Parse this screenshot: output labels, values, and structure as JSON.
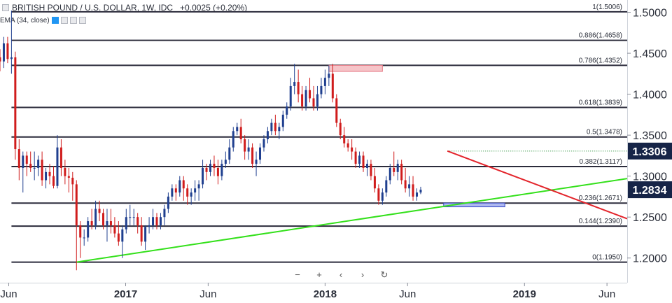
{
  "header": {
    "symbol": "BRITISH POUND / U.S. DOLLAR, 1W, IDC",
    "change": "+0.0025 (+0.20%)",
    "indicator": "EMA (34, close)"
  },
  "colors": {
    "up": "#1f3f8f",
    "down": "#d01c1c",
    "fib_line": "#2b2b3b",
    "green_trend": "#33e01a",
    "red_trend": "#e3242b",
    "support_zone": "#aeb8f0",
    "resistance_zone": "#f6c4c8",
    "price_badge": "#162447",
    "axis_text": "#2a2e39"
  },
  "nav": {
    "zoom_out": "−",
    "zoom_in": "+",
    "scroll_left": "‹",
    "scroll_right": "›",
    "reset": "↻"
  },
  "chart_data": {
    "type": "candlestick",
    "ylim": [
      1.175,
      1.515
    ],
    "xlim": [
      "2016-05-16",
      "2019-07-08"
    ],
    "y_ticks": [
      1.5,
      1.45,
      1.4,
      1.35,
      1.3,
      1.25,
      1.2
    ],
    "y_tick_labels": [
      "1.5000",
      "1.4500",
      "1.4000",
      "1.3500",
      "1.3000",
      "1.2500",
      "1.2000"
    ],
    "x_ticks": [
      {
        "label": "Jun",
        "date": "2016-06-01"
      },
      {
        "label": "2017",
        "date": "2017-01-01"
      },
      {
        "label": "Jun",
        "date": "2017-06-01"
      },
      {
        "label": "2018",
        "date": "2018-01-01"
      },
      {
        "label": "Jun",
        "date": "2018-06-01"
      },
      {
        "label": "2019",
        "date": "2019-01-01"
      },
      {
        "label": "Jun",
        "date": "2019-06-01"
      }
    ],
    "fib_levels": [
      {
        "label": "1(1.5006)",
        "value": 1.5006
      },
      {
        "label": "0.886(1.4658)",
        "value": 1.4658
      },
      {
        "label": "0.786(1.4352)",
        "value": 1.4352
      },
      {
        "label": "0.618(1.3839)",
        "value": 1.3839
      },
      {
        "label": "0.5(1.3478)",
        "value": 1.3478
      },
      {
        "label": "0.382(1.3117)",
        "value": 1.3117
      },
      {
        "label": "0.236(1.2671)",
        "value": 1.2671
      },
      {
        "label": "0.144(1.2390)",
        "value": 1.239
      },
      {
        "label": "0(1.1950)",
        "value": 1.195
      }
    ],
    "price_badges": [
      {
        "label": "1.3306",
        "value": 1.3306
      },
      {
        "label": "1.2834",
        "value": 1.2834
      }
    ],
    "dotted_level": {
      "value": 1.3306,
      "from": "2018-08-13",
      "to": "2019-07-08"
    },
    "trendlines": [
      {
        "name": "support",
        "from": {
          "date": "2016-10-03",
          "value": 1.195
        },
        "to": {
          "date": "2019-07-08",
          "value": 1.297
        }
      },
      {
        "name": "resistance",
        "from": {
          "date": "2018-08-13",
          "value": 1.3306
        },
        "to": {
          "date": "2019-07-08",
          "value": 1.248
        }
      }
    ],
    "zones": [
      {
        "name": "resistance-zone",
        "from": "2018-01-08",
        "to": "2018-04-16",
        "low": 1.4278,
        "high": 1.4352
      },
      {
        "name": "support-zone",
        "from": "2018-08-06",
        "to": "2018-11-26",
        "low": 1.2625,
        "high": 1.2671
      }
    ],
    "candles": {
      "start_date": "2016-05-16",
      "interval_days": 7,
      "ohlc": [
        [
          1.445,
          1.455,
          1.428,
          1.44
        ],
        [
          1.44,
          1.47,
          1.432,
          1.462
        ],
        [
          1.462,
          1.47,
          1.438,
          1.443
        ],
        [
          1.443,
          1.502,
          1.425,
          1.445
        ],
        [
          1.445,
          1.452,
          1.32,
          1.333
        ],
        [
          1.333,
          1.345,
          1.295,
          1.31
        ],
        [
          1.31,
          1.33,
          1.28,
          1.325
        ],
        [
          1.325,
          1.33,
          1.3,
          1.315
        ],
        [
          1.315,
          1.33,
          1.305,
          1.31
        ],
        [
          1.31,
          1.33,
          1.295,
          1.31
        ],
        [
          1.31,
          1.325,
          1.3,
          1.32
        ],
        [
          1.32,
          1.33,
          1.288,
          1.295
        ],
        [
          1.295,
          1.31,
          1.285,
          1.305
        ],
        [
          1.305,
          1.315,
          1.29,
          1.3
        ],
        [
          1.3,
          1.312,
          1.285,
          1.288
        ],
        [
          1.288,
          1.35,
          1.285,
          1.335
        ],
        [
          1.335,
          1.345,
          1.3,
          1.31
        ],
        [
          1.31,
          1.32,
          1.29,
          1.3
        ],
        [
          1.3,
          1.31,
          1.28,
          1.298
        ],
        [
          1.298,
          1.305,
          1.27,
          1.29
        ],
        [
          1.29,
          1.295,
          1.185,
          1.24
        ],
        [
          1.24,
          1.245,
          1.2,
          1.225
        ],
        [
          1.225,
          1.235,
          1.215,
          1.225
        ],
        [
          1.225,
          1.25,
          1.22,
          1.245
        ],
        [
          1.245,
          1.26,
          1.235,
          1.24
        ],
        [
          1.24,
          1.27,
          1.235,
          1.26
        ],
        [
          1.26,
          1.27,
          1.245,
          1.255
        ],
        [
          1.255,
          1.26,
          1.235,
          1.24
        ],
        [
          1.24,
          1.26,
          1.22,
          1.245
        ],
        [
          1.245,
          1.26,
          1.23,
          1.24
        ],
        [
          1.24,
          1.25,
          1.225,
          1.23
        ],
        [
          1.23,
          1.245,
          1.215,
          1.22
        ],
        [
          1.22,
          1.24,
          1.2,
          1.235
        ],
        [
          1.235,
          1.26,
          1.23,
          1.25
        ],
        [
          1.25,
          1.265,
          1.24,
          1.25
        ],
        [
          1.25,
          1.26,
          1.24,
          1.25
        ],
        [
          1.25,
          1.255,
          1.23,
          1.24
        ],
        [
          1.24,
          1.25,
          1.215,
          1.22
        ],
        [
          1.22,
          1.24,
          1.21,
          1.238
        ],
        [
          1.238,
          1.25,
          1.23,
          1.24
        ],
        [
          1.24,
          1.26,
          1.235,
          1.25
        ],
        [
          1.25,
          1.255,
          1.235,
          1.24
        ],
        [
          1.24,
          1.255,
          1.235,
          1.25
        ],
        [
          1.25,
          1.265,
          1.24,
          1.26
        ],
        [
          1.26,
          1.28,
          1.255,
          1.275
        ],
        [
          1.275,
          1.29,
          1.27,
          1.285
        ],
        [
          1.285,
          1.29,
          1.27,
          1.28
        ],
        [
          1.28,
          1.3,
          1.275,
          1.295
        ],
        [
          1.295,
          1.3,
          1.27,
          1.285
        ],
        [
          1.285,
          1.29,
          1.265,
          1.275
        ],
        [
          1.275,
          1.285,
          1.265,
          1.28
        ],
        [
          1.28,
          1.295,
          1.27,
          1.285
        ],
        [
          1.285,
          1.295,
          1.27,
          1.29
        ],
        [
          1.29,
          1.32,
          1.285,
          1.31
        ],
        [
          1.31,
          1.315,
          1.295,
          1.305
        ],
        [
          1.305,
          1.32,
          1.3,
          1.315
        ],
        [
          1.315,
          1.325,
          1.3,
          1.31
        ],
        [
          1.31,
          1.32,
          1.29,
          1.3
        ],
        [
          1.3,
          1.32,
          1.295,
          1.315
        ],
        [
          1.315,
          1.33,
          1.31,
          1.32
        ],
        [
          1.32,
          1.345,
          1.315,
          1.335
        ],
        [
          1.335,
          1.36,
          1.33,
          1.355
        ],
        [
          1.355,
          1.365,
          1.35,
          1.36
        ],
        [
          1.36,
          1.37,
          1.34,
          1.345
        ],
        [
          1.345,
          1.35,
          1.32,
          1.33
        ],
        [
          1.33,
          1.345,
          1.32,
          1.335
        ],
        [
          1.335,
          1.34,
          1.31,
          1.315
        ],
        [
          1.315,
          1.33,
          1.3,
          1.32
        ],
        [
          1.32,
          1.34,
          1.315,
          1.335
        ],
        [
          1.335,
          1.35,
          1.33,
          1.345
        ],
        [
          1.345,
          1.36,
          1.34,
          1.355
        ],
        [
          1.355,
          1.37,
          1.35,
          1.365
        ],
        [
          1.365,
          1.375,
          1.35,
          1.355
        ],
        [
          1.355,
          1.365,
          1.345,
          1.36
        ],
        [
          1.36,
          1.38,
          1.355,
          1.375
        ],
        [
          1.375,
          1.39,
          1.37,
          1.385
        ],
        [
          1.385,
          1.42,
          1.38,
          1.41
        ],
        [
          1.41,
          1.437,
          1.4,
          1.415
        ],
        [
          1.415,
          1.43,
          1.39,
          1.4
        ],
        [
          1.4,
          1.41,
          1.38,
          1.385
        ],
        [
          1.385,
          1.41,
          1.38,
          1.405
        ],
        [
          1.405,
          1.42,
          1.39,
          1.395
        ],
        [
          1.395,
          1.41,
          1.38,
          1.385
        ],
        [
          1.385,
          1.41,
          1.38,
          1.4
        ],
        [
          1.4,
          1.42,
          1.395,
          1.41
        ],
        [
          1.41,
          1.43,
          1.4,
          1.42
        ],
        [
          1.42,
          1.435,
          1.41,
          1.425
        ],
        [
          1.425,
          1.437,
          1.39,
          1.395
        ],
        [
          1.395,
          1.4,
          1.36,
          1.365
        ],
        [
          1.365,
          1.37,
          1.345,
          1.35
        ],
        [
          1.35,
          1.36,
          1.335,
          1.34
        ],
        [
          1.34,
          1.345,
          1.33,
          1.335
        ],
        [
          1.335,
          1.345,
          1.32,
          1.33
        ],
        [
          1.33,
          1.335,
          1.31,
          1.315
        ],
        [
          1.315,
          1.33,
          1.31,
          1.325
        ],
        [
          1.325,
          1.33,
          1.305,
          1.31
        ],
        [
          1.31,
          1.32,
          1.3,
          1.315
        ],
        [
          1.315,
          1.32,
          1.295,
          1.3
        ],
        [
          1.3,
          1.31,
          1.28,
          1.285
        ],
        [
          1.285,
          1.29,
          1.265,
          1.27
        ],
        [
          1.27,
          1.285,
          1.265,
          1.28
        ],
        [
          1.28,
          1.3,
          1.275,
          1.295
        ],
        [
          1.295,
          1.315,
          1.29,
          1.31
        ],
        [
          1.31,
          1.33,
          1.3,
          1.305
        ],
        [
          1.305,
          1.32,
          1.295,
          1.315
        ],
        [
          1.315,
          1.32,
          1.29,
          1.295
        ],
        [
          1.295,
          1.31,
          1.28,
          1.285
        ],
        [
          1.285,
          1.3,
          1.275,
          1.29
        ],
        [
          1.29,
          1.3,
          1.27,
          1.275
        ],
        [
          1.275,
          1.285,
          1.27,
          1.28
        ],
        [
          1.28,
          1.287,
          1.278,
          1.2834
        ]
      ]
    }
  }
}
